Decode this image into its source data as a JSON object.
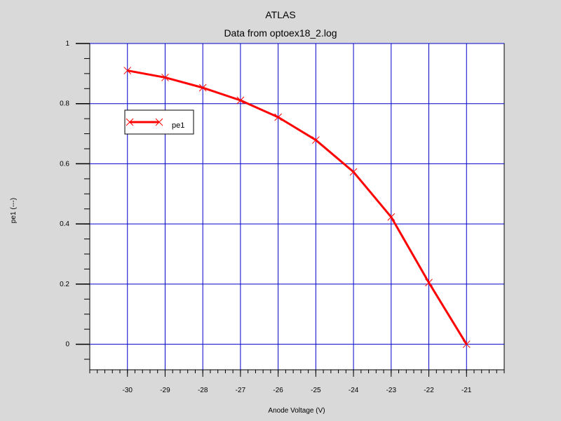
{
  "chart_data": {
    "type": "line",
    "title": "ATLAS",
    "subtitle": "Data from optoex18_2.log",
    "xlabel": "Anode Voltage (V)",
    "ylabel": "pe1 (---)",
    "xlim": [
      -31,
      -20
    ],
    "ylim": [
      -0.085,
      1.0
    ],
    "xticks": [
      -30,
      -29,
      -28,
      -27,
      -26,
      -25,
      -24,
      -23,
      -22,
      -21
    ],
    "yticks": [
      0,
      0.2,
      0.4,
      0.6,
      0.8,
      1
    ],
    "xtick_labels": [
      "-30",
      "-29",
      "-28",
      "-27",
      "-26",
      "-25",
      "-24",
      "-23",
      "-22",
      "-21"
    ],
    "ytick_labels": [
      "0",
      "0.2",
      "0.4",
      "0.6",
      "0.8",
      "1"
    ],
    "grid": true,
    "legend_position": "top-left",
    "series": [
      {
        "name": "pe1",
        "color": "#ff0000",
        "marker": "x",
        "x": [
          -30,
          -29,
          -28,
          -27,
          -26,
          -25,
          -24,
          -23,
          -22,
          -21
        ],
        "y": [
          0.91,
          0.887,
          0.853,
          0.811,
          0.755,
          0.679,
          0.573,
          0.423,
          0.205,
          0.0
        ]
      }
    ]
  },
  "colors": {
    "background": "#d9d9d9",
    "plot_bg": "#ffffff",
    "grid": "#0000cc",
    "series": "#ff0000"
  }
}
